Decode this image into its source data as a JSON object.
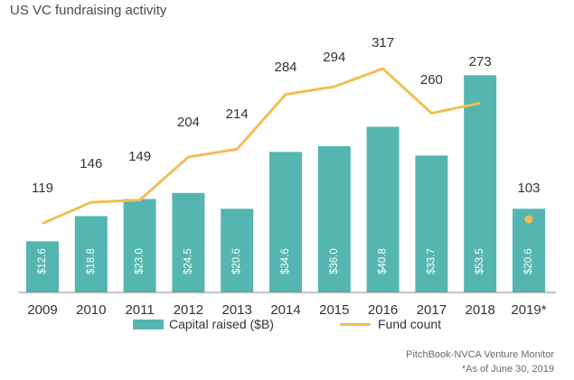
{
  "title": "US VC fundraising activity",
  "colors": {
    "bar": "#55b5b0",
    "line": "#f3be54",
    "axis": "#8a8a8a",
    "label": "#333333",
    "barlabel": "#ffffff"
  },
  "chart_data": {
    "type": "bar",
    "title": "US VC fundraising activity",
    "categories": [
      "2009",
      "2010",
      "2011",
      "2012",
      "2013",
      "2014",
      "2015",
      "2016",
      "2017",
      "2018",
      "2019*"
    ],
    "series": [
      {
        "name": "Capital raised ($B)",
        "type": "bar",
        "values": [
          12.6,
          18.8,
          23.0,
          24.5,
          20.6,
          34.6,
          36.0,
          40.8,
          33.7,
          53.5,
          20.6
        ],
        "labels": [
          "$12.6",
          "$18.8",
          "$23.0",
          "$24.5",
          "$20.6",
          "$34.6",
          "$36.0",
          "$40.8",
          "$33.7",
          "$53.5",
          "$20.6"
        ]
      },
      {
        "name": "Fund count",
        "type": "line",
        "values": [
          119,
          146,
          149,
          204,
          214,
          284,
          294,
          317,
          260,
          273,
          103
        ],
        "labels": [
          "119",
          "146",
          "149",
          "204",
          "214",
          "284",
          "294",
          "317",
          "260",
          "273",
          "103"
        ]
      }
    ],
    "legend": "bottom-center",
    "grid": false
  },
  "legend": {
    "bar_label": "Capital raised ($B)",
    "line_label": "Fund count"
  },
  "source": {
    "line1": "PitchBook-NVCA Venture Monitor",
    "line2": "*As of June 30, 2019"
  }
}
